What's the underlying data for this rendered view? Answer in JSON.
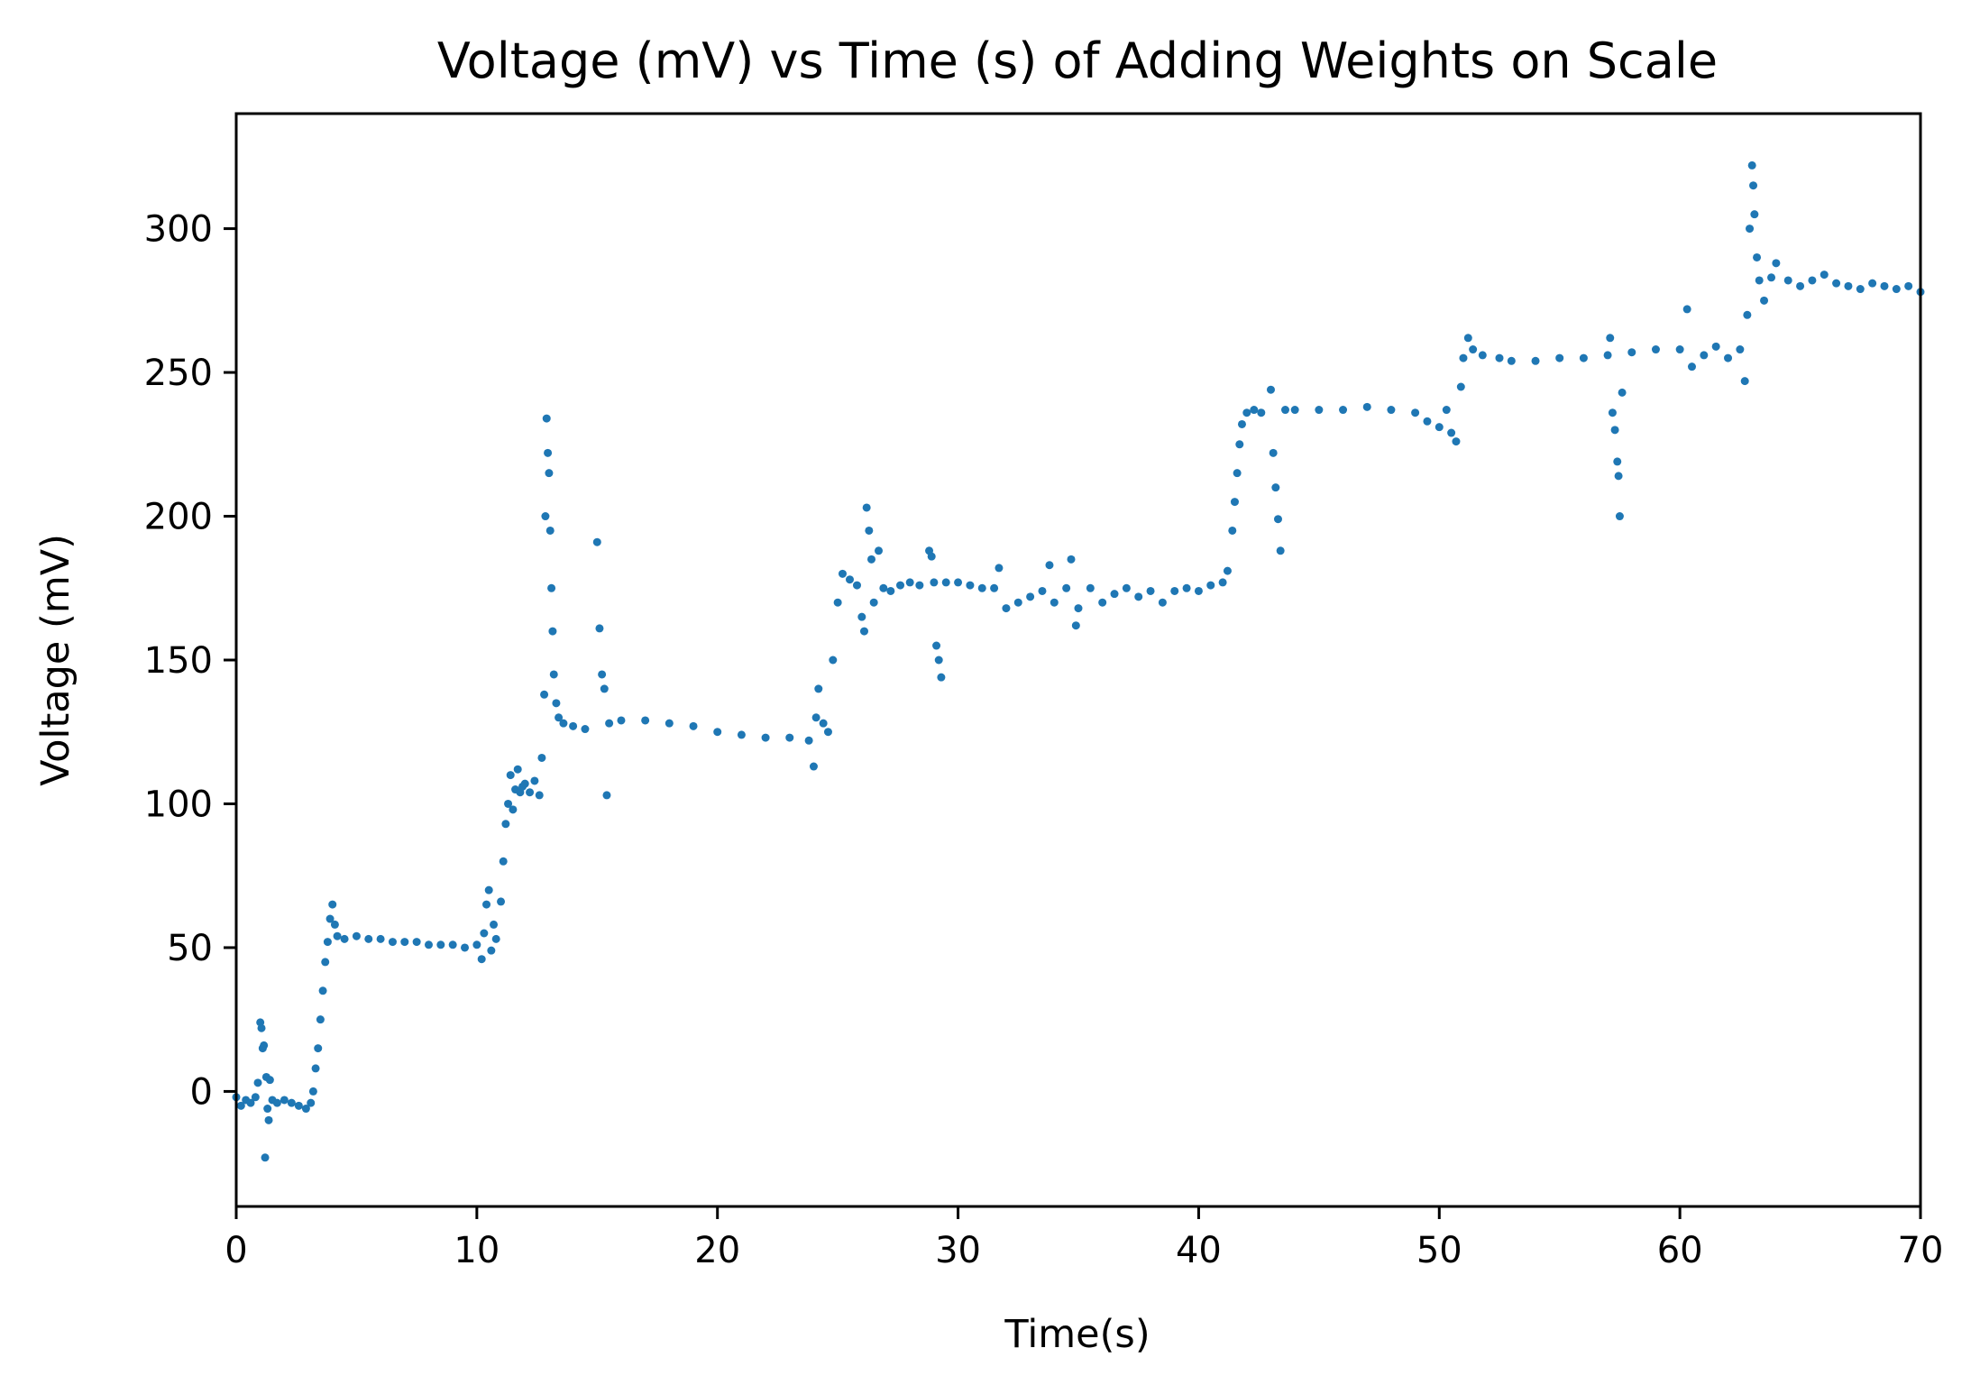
{
  "chart_data": {
    "type": "scatter",
    "title": "Voltage (mV) vs Time (s) of Adding Weights on Scale",
    "xlabel": "Time(s)",
    "ylabel": "Voltage (mV)",
    "xlim": [
      0,
      70
    ],
    "ylim": [
      -40,
      340
    ],
    "xticks": [
      0,
      10,
      20,
      30,
      40,
      50,
      60,
      70
    ],
    "yticks": [
      0,
      50,
      100,
      150,
      200,
      250,
      300
    ],
    "grid": false,
    "legend": "none",
    "marker_color": "#1f77b4",
    "series": [
      {
        "points": [
          [
            0.0,
            -2
          ],
          [
            0.2,
            -5
          ],
          [
            0.4,
            -3
          ],
          [
            0.6,
            -4
          ],
          [
            0.8,
            -2
          ],
          [
            0.9,
            3
          ],
          [
            1.0,
            24
          ],
          [
            1.05,
            22
          ],
          [
            1.1,
            15
          ],
          [
            1.15,
            16
          ],
          [
            1.2,
            -23
          ],
          [
            1.25,
            5
          ],
          [
            1.3,
            -6
          ],
          [
            1.35,
            -10
          ],
          [
            1.4,
            4
          ],
          [
            1.5,
            -3
          ],
          [
            1.7,
            -4
          ],
          [
            2.0,
            -3
          ],
          [
            2.3,
            -4
          ],
          [
            2.6,
            -5
          ],
          [
            2.9,
            -6
          ],
          [
            3.1,
            -4
          ],
          [
            3.2,
            0
          ],
          [
            3.3,
            8
          ],
          [
            3.4,
            15
          ],
          [
            3.5,
            25
          ],
          [
            3.6,
            35
          ],
          [
            3.7,
            45
          ],
          [
            3.8,
            52
          ],
          [
            3.9,
            60
          ],
          [
            4.0,
            65
          ],
          [
            4.1,
            58
          ],
          [
            4.2,
            54
          ],
          [
            4.5,
            53
          ],
          [
            5.0,
            54
          ],
          [
            5.5,
            53
          ],
          [
            6.0,
            53
          ],
          [
            6.5,
            52
          ],
          [
            7.0,
            52
          ],
          [
            7.5,
            52
          ],
          [
            8.0,
            51
          ],
          [
            8.5,
            51
          ],
          [
            9.0,
            51
          ],
          [
            9.5,
            50
          ],
          [
            10.0,
            51
          ],
          [
            10.2,
            46
          ],
          [
            10.3,
            55
          ],
          [
            10.4,
            65
          ],
          [
            10.5,
            70
          ],
          [
            10.6,
            49
          ],
          [
            10.7,
            58
          ],
          [
            10.8,
            53
          ],
          [
            11.0,
            66
          ],
          [
            11.1,
            80
          ],
          [
            11.2,
            93
          ],
          [
            11.3,
            100
          ],
          [
            11.4,
            110
          ],
          [
            11.5,
            98
          ],
          [
            11.6,
            105
          ],
          [
            11.7,
            112
          ],
          [
            11.8,
            104
          ],
          [
            11.9,
            106
          ],
          [
            12.0,
            107
          ],
          [
            12.2,
            104
          ],
          [
            12.4,
            108
          ],
          [
            12.6,
            103
          ],
          [
            12.7,
            116
          ],
          [
            12.8,
            138
          ],
          [
            12.85,
            200
          ],
          [
            12.9,
            234
          ],
          [
            12.95,
            222
          ],
          [
            13.0,
            215
          ],
          [
            13.05,
            195
          ],
          [
            13.1,
            175
          ],
          [
            13.15,
            160
          ],
          [
            13.2,
            145
          ],
          [
            13.3,
            135
          ],
          [
            13.4,
            130
          ],
          [
            13.6,
            128
          ],
          [
            14.0,
            127
          ],
          [
            14.5,
            126
          ],
          [
            15.0,
            191
          ],
          [
            15.1,
            161
          ],
          [
            15.2,
            145
          ],
          [
            15.3,
            140
          ],
          [
            15.4,
            103
          ],
          [
            15.5,
            128
          ],
          [
            16.0,
            129
          ],
          [
            17.0,
            129
          ],
          [
            18.0,
            128
          ],
          [
            19.0,
            127
          ],
          [
            20.0,
            125
          ],
          [
            21.0,
            124
          ],
          [
            22.0,
            123
          ],
          [
            23.0,
            123
          ],
          [
            23.8,
            122
          ],
          [
            24.0,
            113
          ],
          [
            24.1,
            130
          ],
          [
            24.2,
            140
          ],
          [
            24.4,
            128
          ],
          [
            24.6,
            125
          ],
          [
            24.8,
            150
          ],
          [
            25.0,
            170
          ],
          [
            25.2,
            180
          ],
          [
            25.5,
            178
          ],
          [
            25.8,
            176
          ],
          [
            26.0,
            165
          ],
          [
            26.1,
            160
          ],
          [
            26.2,
            203
          ],
          [
            26.3,
            195
          ],
          [
            26.4,
            185
          ],
          [
            26.5,
            170
          ],
          [
            26.7,
            188
          ],
          [
            26.9,
            175
          ],
          [
            27.2,
            174
          ],
          [
            27.6,
            176
          ],
          [
            28.0,
            177
          ],
          [
            28.4,
            176
          ],
          [
            28.8,
            188
          ],
          [
            28.9,
            186
          ],
          [
            29.0,
            177
          ],
          [
            29.1,
            155
          ],
          [
            29.2,
            150
          ],
          [
            29.3,
            144
          ],
          [
            29.5,
            177
          ],
          [
            30.0,
            177
          ],
          [
            30.5,
            176
          ],
          [
            31.0,
            175
          ],
          [
            31.5,
            175
          ],
          [
            31.7,
            182
          ],
          [
            32.0,
            168
          ],
          [
            32.5,
            170
          ],
          [
            33.0,
            172
          ],
          [
            33.5,
            174
          ],
          [
            33.8,
            183
          ],
          [
            34.0,
            170
          ],
          [
            34.5,
            175
          ],
          [
            34.7,
            185
          ],
          [
            34.9,
            162
          ],
          [
            35.0,
            168
          ],
          [
            35.5,
            175
          ],
          [
            36.0,
            170
          ],
          [
            36.5,
            173
          ],
          [
            37.0,
            175
          ],
          [
            37.5,
            172
          ],
          [
            38.0,
            174
          ],
          [
            38.5,
            170
          ],
          [
            39.0,
            174
          ],
          [
            39.5,
            175
          ],
          [
            40.0,
            174
          ],
          [
            40.5,
            176
          ],
          [
            41.0,
            177
          ],
          [
            41.2,
            181
          ],
          [
            41.4,
            195
          ],
          [
            41.5,
            205
          ],
          [
            41.6,
            215
          ],
          [
            41.7,
            225
          ],
          [
            41.8,
            232
          ],
          [
            42.0,
            236
          ],
          [
            42.3,
            237
          ],
          [
            42.6,
            236
          ],
          [
            43.0,
            244
          ],
          [
            43.1,
            222
          ],
          [
            43.2,
            210
          ],
          [
            43.3,
            199
          ],
          [
            43.4,
            188
          ],
          [
            43.6,
            237
          ],
          [
            44.0,
            237
          ],
          [
            45.0,
            237
          ],
          [
            46.0,
            237
          ],
          [
            47.0,
            238
          ],
          [
            48.0,
            237
          ],
          [
            49.0,
            236
          ],
          [
            49.5,
            233
          ],
          [
            50.0,
            231
          ],
          [
            50.3,
            237
          ],
          [
            50.5,
            229
          ],
          [
            50.7,
            226
          ],
          [
            50.9,
            245
          ],
          [
            51.0,
            255
          ],
          [
            51.2,
            262
          ],
          [
            51.4,
            258
          ],
          [
            51.8,
            256
          ],
          [
            52.5,
            255
          ],
          [
            53.0,
            254
          ],
          [
            54.0,
            254
          ],
          [
            55.0,
            255
          ],
          [
            56.0,
            255
          ],
          [
            57.0,
            256
          ],
          [
            57.1,
            262
          ],
          [
            57.2,
            236
          ],
          [
            57.3,
            230
          ],
          [
            57.4,
            219
          ],
          [
            57.45,
            214
          ],
          [
            57.5,
            200
          ],
          [
            57.6,
            243
          ],
          [
            58.0,
            257
          ],
          [
            59.0,
            258
          ],
          [
            60.0,
            258
          ],
          [
            60.3,
            272
          ],
          [
            60.5,
            252
          ],
          [
            61.0,
            256
          ],
          [
            61.5,
            259
          ],
          [
            62.0,
            255
          ],
          [
            62.5,
            258
          ],
          [
            62.7,
            247
          ],
          [
            62.8,
            270
          ],
          [
            62.9,
            300
          ],
          [
            63.0,
            322
          ],
          [
            63.05,
            315
          ],
          [
            63.1,
            305
          ],
          [
            63.2,
            290
          ],
          [
            63.3,
            282
          ],
          [
            63.5,
            275
          ],
          [
            63.8,
            283
          ],
          [
            64.0,
            288
          ],
          [
            64.5,
            282
          ],
          [
            65.0,
            280
          ],
          [
            65.5,
            282
          ],
          [
            66.0,
            284
          ],
          [
            66.5,
            281
          ],
          [
            67.0,
            280
          ],
          [
            67.5,
            279
          ],
          [
            68.0,
            281
          ],
          [
            68.5,
            280
          ],
          [
            69.0,
            279
          ],
          [
            69.5,
            280
          ],
          [
            70.0,
            278
          ]
        ]
      }
    ]
  }
}
